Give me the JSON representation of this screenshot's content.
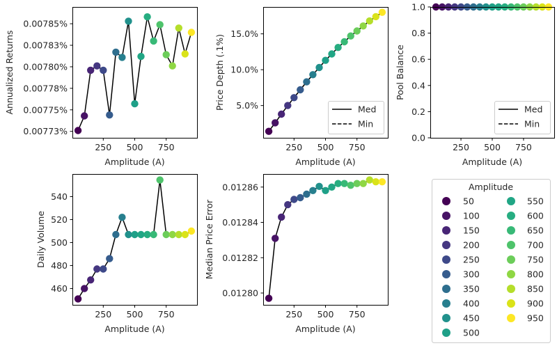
{
  "figure": {
    "legend": {
      "title": "Amplitude",
      "entries": [
        "50",
        "100",
        "150",
        "200",
        "250",
        "300",
        "350",
        "400",
        "450",
        "500",
        "550",
        "600",
        "650",
        "700",
        "750",
        "800",
        "850",
        "900",
        "950"
      ]
    },
    "line_legend": {
      "med_label": "Med",
      "min_label": "Min"
    }
  },
  "chart_data": [
    {
      "type": "line",
      "title": "",
      "xlabel": "Amplitude (A)",
      "ylabel": "Annualized Returns",
      "x": [
        50,
        100,
        150,
        200,
        250,
        300,
        350,
        400,
        450,
        500,
        550,
        600,
        650,
        700,
        750,
        800,
        850,
        900,
        950
      ],
      "values": [
        0.007726,
        0.007743,
        0.007796,
        0.007801,
        0.007796,
        0.007744,
        0.007817,
        0.007811,
        0.007853,
        0.007757,
        0.007812,
        0.007858,
        0.00783,
        0.007849,
        0.007814,
        0.007801,
        0.007845,
        0.007815,
        0.00784
      ],
      "xticks": [
        250,
        500,
        750
      ],
      "xtick_labels": [
        "250",
        "500",
        "750"
      ],
      "yticks": [
        0.007725,
        0.00775,
        0.007775,
        0.0078,
        0.007825,
        0.00785
      ],
      "ytick_labels": [
        "0.00773%",
        "0.00775%",
        "0.00778%",
        "0.00780%",
        "0.00783%",
        "0.00785%"
      ],
      "xlim": [
        5,
        995
      ],
      "ylim": [
        0.0077175,
        0.0078695
      ],
      "legend": null
    },
    {
      "type": "line",
      "title": "",
      "xlabel": "Amplitude (A)",
      "ylabel": "Price Depth (.1%)",
      "x": [
        50,
        100,
        150,
        200,
        250,
        300,
        350,
        400,
        450,
        500,
        550,
        600,
        650,
        700,
        750,
        800,
        850,
        900,
        950
      ],
      "series": [
        {
          "name": "Med",
          "style": "solid",
          "values": [
            1.4,
            2.6,
            3.8,
            5.0,
            6.1,
            7.2,
            8.3,
            9.3,
            10.3,
            11.3,
            12.2,
            13.1,
            13.9,
            14.7,
            15.4,
            16.1,
            16.8,
            17.4,
            18.0
          ]
        },
        {
          "name": "Min",
          "style": "dashed",
          "values": [
            1.4,
            2.6,
            3.8,
            5.0,
            6.1,
            7.2,
            8.3,
            9.3,
            10.3,
            11.3,
            12.2,
            13.1,
            13.9,
            14.7,
            15.4,
            16.1,
            16.8,
            17.4,
            18.0
          ]
        }
      ],
      "xticks": [
        250,
        500,
        750
      ],
      "xtick_labels": [
        "250",
        "500",
        "750"
      ],
      "yticks": [
        5,
        10,
        15
      ],
      "ytick_labels": [
        "5.0%",
        "10.0%",
        "15.0%"
      ],
      "xlim": [
        5,
        995
      ],
      "ylim": [
        0.5,
        18.75
      ],
      "legend": "lower-right"
    },
    {
      "type": "line",
      "title": "",
      "xlabel": "Amplitude (A)",
      "ylabel": "Pool Balance",
      "x": [
        50,
        100,
        150,
        200,
        250,
        300,
        350,
        400,
        450,
        500,
        550,
        600,
        650,
        700,
        750,
        800,
        850,
        900,
        950
      ],
      "series": [
        {
          "name": "Med",
          "style": "solid",
          "values": [
            1,
            1,
            1,
            1,
            1,
            1,
            1,
            1,
            1,
            1,
            1,
            1,
            1,
            1,
            1,
            1,
            1,
            1,
            1
          ]
        },
        {
          "name": "Min",
          "style": "dashed",
          "values": [
            1,
            1,
            1,
            1,
            1,
            1,
            1,
            1,
            1,
            1,
            1,
            1,
            1,
            1,
            1,
            1,
            1,
            1,
            1
          ]
        }
      ],
      "xticks": [
        250,
        500,
        750
      ],
      "xtick_labels": [
        "250",
        "500",
        "750"
      ],
      "yticks": [
        0,
        0.2,
        0.4,
        0.6,
        0.8,
        1.0
      ],
      "ytick_labels": [
        "0.0",
        "0.2",
        "0.4",
        "0.6",
        "0.8",
        "1.0"
      ],
      "xlim": [
        5,
        995
      ],
      "ylim": [
        0,
        1
      ],
      "legend": "lower-right"
    },
    {
      "type": "line",
      "title": "",
      "xlabel": "Amplitude (A)",
      "ylabel": "Daily Volume",
      "x": [
        50,
        100,
        150,
        200,
        250,
        300,
        350,
        400,
        450,
        500,
        550,
        600,
        650,
        700,
        750,
        800,
        850,
        900,
        950
      ],
      "values": [
        451,
        460,
        467.5,
        477,
        477,
        486,
        507,
        522,
        507,
        507,
        507,
        507,
        507,
        554.5,
        507,
        507,
        507,
        507,
        510
      ],
      "xticks": [
        250,
        500,
        750
      ],
      "xtick_labels": [
        "250",
        "500",
        "750"
      ],
      "yticks": [
        460,
        480,
        500,
        520,
        540
      ],
      "ytick_labels": [
        "460",
        "480",
        "500",
        "520",
        "540"
      ],
      "xlim": [
        5,
        995
      ],
      "ylim": [
        445.8,
        559.7
      ],
      "legend": null
    },
    {
      "type": "line",
      "title": "",
      "xlabel": "Amplitude (A)",
      "ylabel": "Median Price Error",
      "x": [
        50,
        100,
        150,
        200,
        250,
        300,
        350,
        400,
        450,
        500,
        550,
        600,
        650,
        700,
        750,
        800,
        850,
        900,
        950
      ],
      "values": [
        0.012797,
        0.012831,
        0.012843,
        0.01285,
        0.012853,
        0.012854,
        0.012856,
        0.012858,
        0.0128604,
        0.012858,
        0.01286,
        0.012862,
        0.012862,
        0.012861,
        0.012862,
        0.012862,
        0.012864,
        0.012863,
        0.012863
      ],
      "xticks": [
        250,
        500,
        750
      ],
      "xtick_labels": [
        "250",
        "500",
        "750"
      ],
      "yticks": [
        0.0128,
        0.01282,
        0.01284,
        0.01286
      ],
      "ytick_labels": [
        "0.01280",
        "0.01282",
        "0.01284",
        "0.01286"
      ],
      "xlim": [
        5,
        995
      ],
      "ylim": [
        0.0127933,
        0.0128674
      ],
      "legend": null
    }
  ],
  "colors": {
    "points": [
      "#440154",
      "#471365",
      "#482475",
      "#463480",
      "#414487",
      "#3b528b",
      "#355f8d",
      "#2f6c8e",
      "#2a788e",
      "#25848e",
      "#21918c",
      "#1e9c89",
      "#22a884",
      "#2fb47c",
      "#44bf70",
      "#5ec962",
      "#7ad151",
      "#9bd93c",
      "#bddf26"
    ],
    "points_override": [
      "#440154",
      "#471365",
      "#482576",
      "#453781",
      "#3e4989",
      "#365c8d",
      "#2e6e8e",
      "#277f8e",
      "#21918c",
      "#1fa088",
      "#21a685",
      "#27ad81",
      "#38b977",
      "#4ec36b",
      "#6ccd5a",
      "#8fd744",
      "#b5de2b",
      "#dae319",
      "#fde725"
    ],
    "line": "#000000",
    "axes": "#000000",
    "legend_border": "#cccccc"
  }
}
